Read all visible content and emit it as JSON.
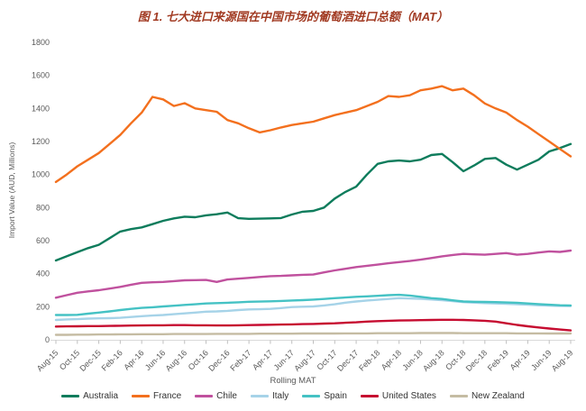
{
  "title": "图 1. 七大进口来源国在中国市场的葡萄酒进口总额（MAT）",
  "chart_data": {
    "type": "line",
    "title": "图 1. 七大进口来源国在中国市场的葡萄酒进口总额（MAT）",
    "ylabel": "Import Value (AUD, Millions)",
    "xlabel": "Rolling MAT",
    "ylim": [
      0,
      1800
    ],
    "y_ticks": [
      0,
      200,
      400,
      600,
      800,
      1000,
      1200,
      1400,
      1600,
      1800
    ],
    "grid": false,
    "legend_position": "bottom",
    "tick_every": 2,
    "x_tick_labels": [
      "Aug-15",
      "Oct-15",
      "Dec-15",
      "Feb-16",
      "Apr-16",
      "Jun-16",
      "Aug-16",
      "Oct-16",
      "Dec-16",
      "Feb-17",
      "Apr-17",
      "Jun-17",
      "Aug-17",
      "Oct-17",
      "Dec-17",
      "Feb-18",
      "Apr-18",
      "Jun-18",
      "Aug-18",
      "Oct-18",
      "Dec-18",
      "Feb-19",
      "Apr-19",
      "Jun-19",
      "Aug-19"
    ],
    "x_resolution": "monthly, Aug-15 through Aug-19 (49 points), labels shown every 2nd month",
    "series": [
      {
        "name": "Australia",
        "color": "#0e7c5c",
        "values": [
          480,
          505,
          530,
          555,
          575,
          615,
          655,
          670,
          680,
          700,
          720,
          735,
          745,
          742,
          753,
          760,
          770,
          736,
          732,
          733,
          735,
          737,
          758,
          775,
          780,
          800,
          855,
          895,
          927,
          1000,
          1065,
          1080,
          1085,
          1080,
          1090,
          1118,
          1125,
          1075,
          1020,
          1055,
          1095,
          1100,
          1060,
          1030,
          1060,
          1090,
          1140,
          1160,
          1185
        ]
      },
      {
        "name": "France",
        "color": "#f3701e",
        "values": [
          955,
          1000,
          1050,
          1090,
          1130,
          1185,
          1240,
          1310,
          1375,
          1470,
          1455,
          1415,
          1432,
          1400,
          1390,
          1380,
          1330,
          1310,
          1280,
          1255,
          1268,
          1285,
          1300,
          1310,
          1320,
          1340,
          1360,
          1375,
          1390,
          1415,
          1440,
          1475,
          1470,
          1480,
          1510,
          1520,
          1535,
          1510,
          1520,
          1480,
          1430,
          1400,
          1375,
          1330,
          1290,
          1245,
          1200,
          1155,
          1110
        ]
      },
      {
        "name": "Chile",
        "color": "#c0519e",
        "values": [
          255,
          270,
          285,
          293,
          300,
          310,
          320,
          333,
          345,
          348,
          350,
          355,
          360,
          361,
          362,
          350,
          365,
          370,
          375,
          380,
          385,
          387,
          390,
          393,
          395,
          408,
          420,
          430,
          440,
          448,
          455,
          463,
          470,
          477,
          485,
          495,
          505,
          513,
          520,
          517,
          515,
          520,
          525,
          515,
          520,
          528,
          535,
          532,
          540
        ]
      },
      {
        "name": "Italy",
        "color": "#a6d3e8",
        "values": [
          120,
          123,
          125,
          128,
          130,
          131,
          133,
          138,
          143,
          147,
          150,
          155,
          160,
          165,
          170,
          172,
          175,
          180,
          184,
          185,
          187,
          192,
          198,
          200,
          202,
          208,
          215,
          225,
          232,
          238,
          242,
          247,
          252,
          250,
          248,
          244,
          240,
          234,
          228,
          225,
          222,
          220,
          218,
          215,
          212,
          209,
          207,
          205,
          204
        ]
      },
      {
        "name": "Spain",
        "color": "#45c2c4",
        "values": [
          150,
          150,
          151,
          158,
          165,
          172,
          180,
          187,
          193,
          197,
          202,
          206,
          211,
          215,
          220,
          222,
          224,
          227,
          230,
          231,
          233,
          235,
          238,
          240,
          243,
          247,
          252,
          256,
          260,
          263,
          266,
          270,
          272,
          268,
          260,
          252,
          247,
          239,
          232,
          230,
          229,
          228,
          226,
          224,
          220,
          216,
          212,
          209,
          208
        ]
      },
      {
        "name": "United States",
        "color": "#c60c30",
        "values": [
          80,
          81,
          82,
          83,
          83,
          84,
          85,
          86,
          87,
          88,
          88,
          89,
          89,
          88,
          88,
          87,
          87,
          88,
          89,
          90,
          91,
          92,
          93,
          95,
          96,
          98,
          100,
          103,
          106,
          110,
          113,
          115,
          117,
          118,
          119,
          120,
          121,
          121,
          120,
          118,
          115,
          110,
          100,
          90,
          82,
          75,
          68,
          62,
          57
        ]
      },
      {
        "name": "New Zealand",
        "color": "#c5bca3",
        "values": [
          30,
          30,
          31,
          31,
          32,
          32,
          33,
          33,
          34,
          34,
          34,
          35,
          35,
          35,
          35,
          36,
          36,
          36,
          36,
          37,
          37,
          37,
          37,
          38,
          38,
          38,
          38,
          39,
          39,
          39,
          40,
          40,
          40,
          40,
          41,
          41,
          41,
          41,
          40,
          40,
          40,
          40,
          40,
          39,
          39,
          39,
          38,
          38,
          38
        ]
      }
    ]
  }
}
